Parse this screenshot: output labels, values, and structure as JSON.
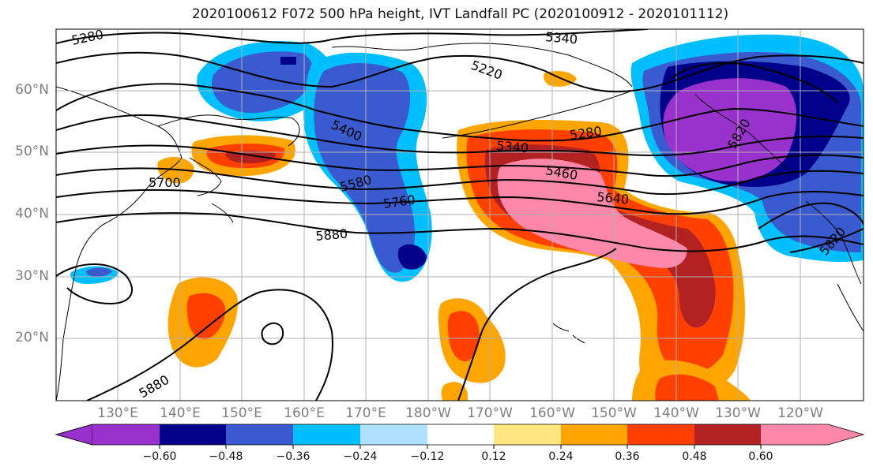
{
  "title": "2020100612 F072 500 hPa height, IVT Landfall PC (2020100912 - 2020101112)",
  "lat_labels": [
    "60°N",
    "50°N",
    "40°N",
    "30°N",
    "20°N"
  ],
  "lon_labels": [
    "130°E",
    "140°E",
    "150°E",
    "160°E",
    "170°E",
    "180°W",
    "170°W",
    "160°W",
    "150°W",
    "140°W",
    "130°W",
    "120°W"
  ],
  "colorbar": {
    "ticks": [
      "−0.60",
      "−0.48",
      "−0.36",
      "−0.24",
      "−0.12",
      "0.12",
      "0.24",
      "0.36",
      "0.48",
      "0.60"
    ],
    "colors": [
      "#9932cc",
      "#00008b",
      "#3a5bd0",
      "#00bfff",
      "#b0e2ff",
      "#ffffff",
      "#ffe680",
      "#ffa500",
      "#ff4000",
      "#b22222",
      "#ff88aa"
    ]
  },
  "contour_labels": [
    "5280",
    "5340",
    "5220",
    "5400",
    "5340",
    "5280",
    "5460",
    "5580",
    "5700",
    "5760",
    "5640",
    "5880",
    "5820",
    "5820",
    "5880"
  ]
}
